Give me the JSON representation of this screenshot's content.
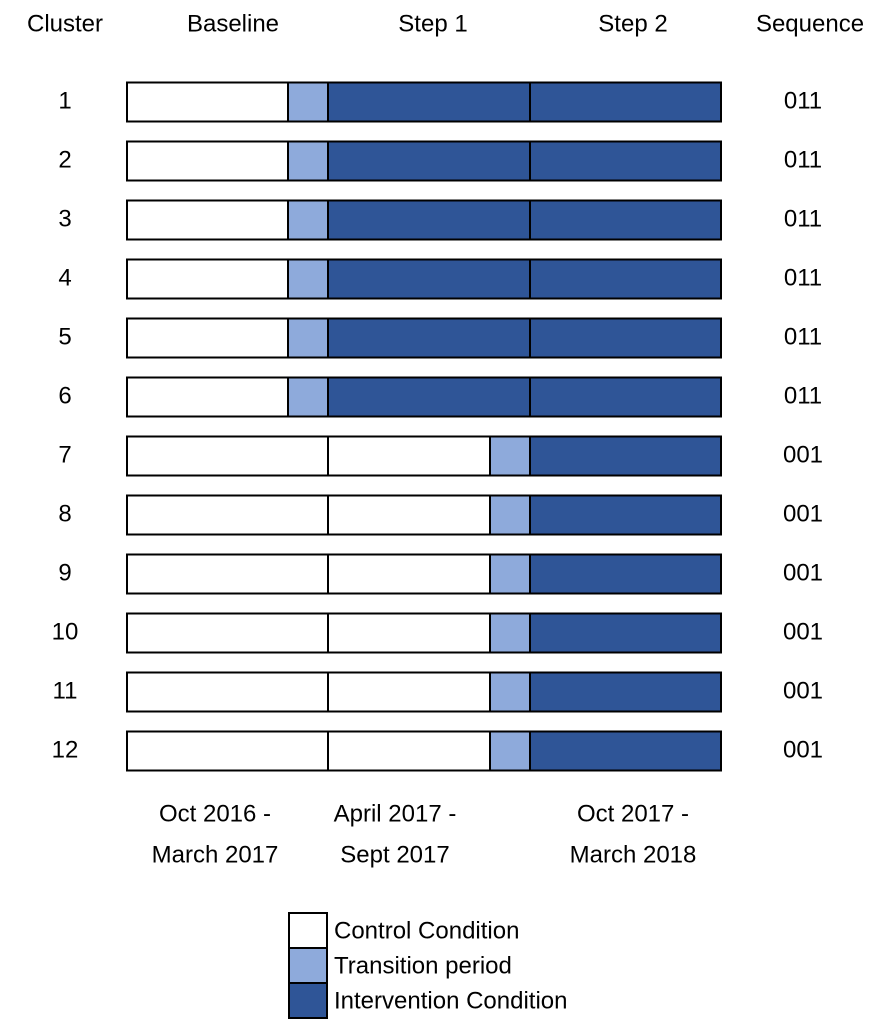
{
  "header": {
    "cluster": "Cluster",
    "periods": [
      "Baseline",
      "Step 1",
      "Step 2"
    ],
    "sequence": "Sequence"
  },
  "rows": [
    {
      "cluster": "1",
      "sequence": "011"
    },
    {
      "cluster": "2",
      "sequence": "011"
    },
    {
      "cluster": "3",
      "sequence": "011"
    },
    {
      "cluster": "4",
      "sequence": "011"
    },
    {
      "cluster": "5",
      "sequence": "011"
    },
    {
      "cluster": "6",
      "sequence": "011"
    },
    {
      "cluster": "7",
      "sequence": "001"
    },
    {
      "cluster": "8",
      "sequence": "001"
    },
    {
      "cluster": "9",
      "sequence": "001"
    },
    {
      "cluster": "10",
      "sequence": "001"
    },
    {
      "cluster": "11",
      "sequence": "001"
    },
    {
      "cluster": "12",
      "sequence": "001"
    }
  ],
  "period_dates": [
    [
      "Oct 2016 -",
      "March 2017"
    ],
    [
      "April 2017 -",
      "Sept 2017"
    ],
    [
      "Oct 2017 -",
      "March 2018"
    ]
  ],
  "legend": {
    "control": "Control Condition",
    "transition": "Transition period",
    "intervention": "Intervention Condition"
  }
}
